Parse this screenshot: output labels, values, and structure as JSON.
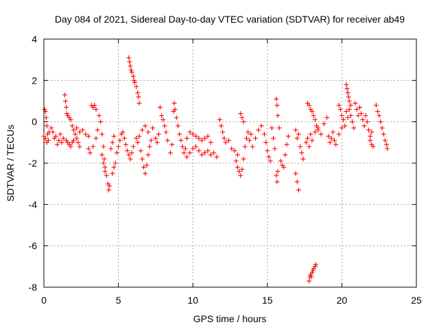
{
  "chart_data": {
    "type": "scatter",
    "title": "Day 084 of 2021, Sidereal Day-to-day VTEC variation (SDTVAR) for receiver ab49",
    "xlabel": "GPS time / hours",
    "ylabel": "SDTVAR / TECUs",
    "xlim": [
      0,
      25
    ],
    "ylim": [
      -8,
      4
    ],
    "xticks": [
      "0",
      "5",
      "10",
      "15",
      "20",
      "25"
    ],
    "yticks": [
      "-8",
      "-6",
      "-4",
      "-2",
      "0",
      "2",
      "4"
    ],
    "grid": true,
    "marker": "plus",
    "color": "#ff0000",
    "series": [
      {
        "name": "SDTVAR",
        "points": [
          [
            0.0,
            -0.7
          ],
          [
            0.05,
            0.6
          ],
          [
            0.1,
            0.5
          ],
          [
            0.15,
            0.2
          ],
          [
            0.2,
            -0.2
          ],
          [
            0.25,
            -0.6
          ],
          [
            0.3,
            -0.9
          ],
          [
            0.1,
            -0.8
          ],
          [
            0.2,
            -1.0
          ],
          [
            0.35,
            -0.5
          ],
          [
            0.5,
            -0.3
          ],
          [
            0.6,
            -0.5
          ],
          [
            0.7,
            -0.8
          ],
          [
            0.8,
            -0.7
          ],
          [
            0.9,
            -1.1
          ],
          [
            1.0,
            -0.9
          ],
          [
            1.1,
            -0.6
          ],
          [
            1.2,
            -1.0
          ],
          [
            1.3,
            -0.8
          ],
          [
            1.4,
            1.3
          ],
          [
            1.45,
            1.0
          ],
          [
            1.5,
            0.7
          ],
          [
            1.55,
            0.4
          ],
          [
            1.6,
            0.3
          ],
          [
            1.7,
            0.2
          ],
          [
            1.8,
            0.1
          ],
          [
            1.9,
            -0.2
          ],
          [
            2.0,
            -0.4
          ],
          [
            2.1,
            -0.6
          ],
          [
            2.2,
            -0.8
          ],
          [
            2.3,
            -1.0
          ],
          [
            2.4,
            -1.2
          ],
          [
            1.5,
            -0.9
          ],
          [
            1.6,
            -1.0
          ],
          [
            1.7,
            -1.1
          ],
          [
            1.8,
            -1.2
          ],
          [
            1.9,
            -1.0
          ],
          [
            2.0,
            -0.9
          ],
          [
            2.2,
            -0.3
          ],
          [
            2.4,
            -0.5
          ],
          [
            2.6,
            -0.4
          ],
          [
            2.8,
            -0.6
          ],
          [
            3.0,
            -0.7
          ],
          [
            3.2,
            0.8
          ],
          [
            3.3,
            0.7
          ],
          [
            3.4,
            0.8
          ],
          [
            3.5,
            0.6
          ],
          [
            3.0,
            -1.3
          ],
          [
            3.1,
            -1.5
          ],
          [
            3.3,
            -1.2
          ],
          [
            3.5,
            -0.8
          ],
          [
            3.6,
            -0.4
          ],
          [
            3.7,
            0.3
          ],
          [
            3.8,
            0.0
          ],
          [
            3.9,
            -0.6
          ],
          [
            4.0,
            -1.2
          ],
          [
            4.05,
            -1.8
          ],
          [
            4.1,
            -2.2
          ],
          [
            4.2,
            -2.6
          ],
          [
            4.3,
            -3.0
          ],
          [
            4.35,
            -3.3
          ],
          [
            4.4,
            -3.1
          ],
          [
            3.9,
            -1.6
          ],
          [
            4.0,
            -2.0
          ],
          [
            4.1,
            -2.4
          ],
          [
            4.6,
            -2.5
          ],
          [
            4.7,
            -2.2
          ],
          [
            4.8,
            -2.0
          ],
          [
            4.5,
            -1.3
          ],
          [
            4.6,
            -1.0
          ],
          [
            4.7,
            -0.7
          ],
          [
            4.9,
            -1.5
          ],
          [
            5.0,
            -1.2
          ],
          [
            5.1,
            -0.9
          ],
          [
            5.2,
            -0.6
          ],
          [
            5.3,
            -0.5
          ],
          [
            5.4,
            -0.8
          ],
          [
            5.5,
            -1.1
          ],
          [
            5.6,
            -1.4
          ],
          [
            5.7,
            -1.6
          ],
          [
            5.8,
            -1.8
          ],
          [
            5.9,
            -1.5
          ],
          [
            6.0,
            -1.2
          ],
          [
            5.7,
            3.1
          ],
          [
            5.75,
            2.9
          ],
          [
            5.8,
            2.7
          ],
          [
            5.85,
            2.5
          ],
          [
            5.9,
            2.4
          ],
          [
            6.0,
            2.2
          ],
          [
            6.05,
            2.0
          ],
          [
            6.1,
            1.9
          ],
          [
            6.2,
            1.7
          ],
          [
            6.3,
            1.4
          ],
          [
            6.35,
            1.2
          ],
          [
            6.4,
            0.9
          ],
          [
            6.2,
            -0.8
          ],
          [
            6.3,
            -1.0
          ],
          [
            6.4,
            -0.7
          ],
          [
            6.5,
            -1.4
          ],
          [
            6.6,
            -1.8
          ],
          [
            6.7,
            -2.2
          ],
          [
            6.8,
            -2.5
          ],
          [
            6.9,
            -2.1
          ],
          [
            7.0,
            -1.6
          ],
          [
            7.1,
            -1.2
          ],
          [
            7.2,
            -0.9
          ],
          [
            6.6,
            -0.4
          ],
          [
            6.8,
            -0.2
          ],
          [
            7.0,
            -0.5
          ],
          [
            7.3,
            -0.3
          ],
          [
            7.5,
            -0.8
          ],
          [
            7.6,
            -1.0
          ],
          [
            7.7,
            -0.6
          ],
          [
            7.8,
            0.7
          ],
          [
            7.9,
            0.3
          ],
          [
            8.0,
            0.1
          ],
          [
            8.1,
            -0.2
          ],
          [
            8.2,
            -0.5
          ],
          [
            8.3,
            -0.9
          ],
          [
            8.5,
            -1.5
          ],
          [
            8.6,
            -1.1
          ],
          [
            8.7,
            0.5
          ],
          [
            8.75,
            0.9
          ],
          [
            8.8,
            0.6
          ],
          [
            8.9,
            0.2
          ],
          [
            9.0,
            -0.2
          ],
          [
            9.1,
            -0.6
          ],
          [
            9.2,
            -0.9
          ],
          [
            9.3,
            -1.2
          ],
          [
            9.4,
            -1.5
          ],
          [
            9.5,
            -1.3
          ],
          [
            9.6,
            -0.8
          ],
          [
            9.8,
            -0.5
          ],
          [
            10.0,
            -0.6
          ],
          [
            10.2,
            -0.7
          ],
          [
            10.4,
            -0.8
          ],
          [
            10.6,
            -0.9
          ],
          [
            10.8,
            -0.8
          ],
          [
            11.0,
            -0.7
          ],
          [
            11.2,
            -1.0
          ],
          [
            9.6,
            -1.7
          ],
          [
            9.8,
            -1.5
          ],
          [
            10.0,
            -1.3
          ],
          [
            10.2,
            -1.2
          ],
          [
            10.4,
            -1.4
          ],
          [
            10.6,
            -1.6
          ],
          [
            10.8,
            -1.5
          ],
          [
            11.0,
            -1.4
          ],
          [
            11.2,
            -1.6
          ],
          [
            11.4,
            -1.5
          ],
          [
            11.6,
            -1.7
          ],
          [
            11.8,
            0.1
          ],
          [
            11.9,
            -0.2
          ],
          [
            12.0,
            -0.5
          ],
          [
            12.1,
            -0.8
          ],
          [
            12.2,
            -1.0
          ],
          [
            12.4,
            -0.9
          ],
          [
            12.6,
            -1.3
          ],
          [
            12.8,
            -1.4
          ],
          [
            13.0,
            -1.6
          ],
          [
            12.9,
            -1.9
          ],
          [
            13.0,
            -2.2
          ],
          [
            13.1,
            -2.4
          ],
          [
            13.2,
            -2.6
          ],
          [
            13.3,
            -2.3
          ],
          [
            13.4,
            -1.8
          ],
          [
            13.5,
            -1.2
          ],
          [
            13.6,
            -0.8
          ],
          [
            13.7,
            -0.5
          ],
          [
            13.8,
            -0.9
          ],
          [
            13.9,
            -0.6
          ],
          [
            13.2,
            0.4
          ],
          [
            13.3,
            0.2
          ],
          [
            13.4,
            0.0
          ],
          [
            14.0,
            -1.2
          ],
          [
            14.2,
            -0.8
          ],
          [
            14.4,
            -0.4
          ],
          [
            14.6,
            -0.2
          ],
          [
            14.8,
            -0.6
          ],
          [
            14.9,
            -1.0
          ],
          [
            15.0,
            -1.4
          ],
          [
            15.1,
            -1.7
          ],
          [
            15.2,
            -1.9
          ],
          [
            15.3,
            -0.3
          ],
          [
            15.4,
            -0.8
          ],
          [
            15.5,
            -1.3
          ],
          [
            15.6,
            1.1
          ],
          [
            15.65,
            0.8
          ],
          [
            15.7,
            0.3
          ],
          [
            15.8,
            -0.3
          ],
          [
            15.6,
            -2.6
          ],
          [
            15.65,
            -2.9
          ],
          [
            15.7,
            -2.4
          ],
          [
            15.9,
            -1.9
          ],
          [
            16.0,
            -2.1
          ],
          [
            16.1,
            -2.2
          ],
          [
            16.2,
            -1.6
          ],
          [
            16.3,
            -1.1
          ],
          [
            16.4,
            -0.7
          ],
          [
            16.9,
            -2.5
          ],
          [
            17.0,
            -2.9
          ],
          [
            17.1,
            -3.3
          ],
          [
            16.9,
            -0.4
          ],
          [
            17.0,
            -0.8
          ],
          [
            17.1,
            -0.6
          ],
          [
            17.2,
            -1.2
          ],
          [
            17.3,
            -1.5
          ],
          [
            17.4,
            -1.8
          ],
          [
            17.6,
            -1.0
          ],
          [
            17.7,
            -0.8
          ],
          [
            17.8,
            -1.2
          ],
          [
            17.9,
            -0.6
          ],
          [
            18.0,
            -0.9
          ],
          [
            18.2,
            -0.5
          ],
          [
            18.4,
            -0.3
          ],
          [
            18.6,
            -0.6
          ],
          [
            18.8,
            -0.1
          ],
          [
            19.0,
            0.2
          ],
          [
            17.7,
            0.9
          ],
          [
            17.8,
            0.8
          ],
          [
            17.9,
            0.6
          ],
          [
            18.0,
            0.5
          ],
          [
            18.1,
            0.3
          ],
          [
            18.2,
            0.1
          ],
          [
            18.3,
            -0.2
          ],
          [
            18.4,
            -0.4
          ],
          [
            19.1,
            -0.7
          ],
          [
            19.2,
            -1.0
          ],
          [
            19.3,
            -0.8
          ],
          [
            19.4,
            -0.5
          ],
          [
            19.5,
            -0.9
          ],
          [
            19.6,
            -1.1
          ],
          [
            19.8,
            -0.6
          ],
          [
            20.0,
            -0.3
          ],
          [
            19.8,
            0.8
          ],
          [
            19.9,
            0.6
          ],
          [
            20.0,
            0.3
          ],
          [
            20.1,
            0.1
          ],
          [
            20.2,
            -0.2
          ],
          [
            20.3,
            0.5
          ],
          [
            20.4,
            0.2
          ],
          [
            20.5,
            0.6
          ],
          [
            20.6,
            0.3
          ],
          [
            20.7,
            0.0
          ],
          [
            20.8,
            -0.3
          ],
          [
            20.3,
            1.8
          ],
          [
            20.35,
            1.6
          ],
          [
            20.4,
            1.4
          ],
          [
            20.45,
            1.2
          ],
          [
            20.5,
            1.0
          ],
          [
            20.6,
            0.8
          ],
          [
            20.9,
            0.9
          ],
          [
            21.0,
            0.6
          ],
          [
            21.1,
            0.3
          ],
          [
            21.2,
            0.7
          ],
          [
            21.3,
            0.4
          ],
          [
            21.4,
            0.1
          ],
          [
            21.5,
            -0.2
          ],
          [
            21.6,
            0.3
          ],
          [
            21.7,
            0.0
          ],
          [
            21.8,
            -0.4
          ],
          [
            21.9,
            -0.7
          ],
          [
            22.0,
            -0.5
          ],
          [
            21.9,
            -0.9
          ],
          [
            22.0,
            -1.1
          ],
          [
            22.1,
            -1.2
          ],
          [
            22.3,
            0.8
          ],
          [
            22.4,
            0.5
          ],
          [
            22.5,
            0.3
          ],
          [
            22.6,
            0.0
          ],
          [
            22.7,
            -0.3
          ],
          [
            22.8,
            -0.6
          ],
          [
            22.9,
            -0.9
          ],
          [
            23.0,
            -1.1
          ],
          [
            23.05,
            -1.3
          ],
          [
            17.8,
            -7.7
          ],
          [
            17.85,
            -7.5
          ],
          [
            17.9,
            -7.4
          ],
          [
            17.95,
            -7.5
          ],
          [
            18.0,
            -7.3
          ],
          [
            18.05,
            -7.2
          ],
          [
            18.1,
            -7.1
          ],
          [
            18.2,
            -7.0
          ],
          [
            18.25,
            -6.9
          ]
        ]
      }
    ]
  }
}
